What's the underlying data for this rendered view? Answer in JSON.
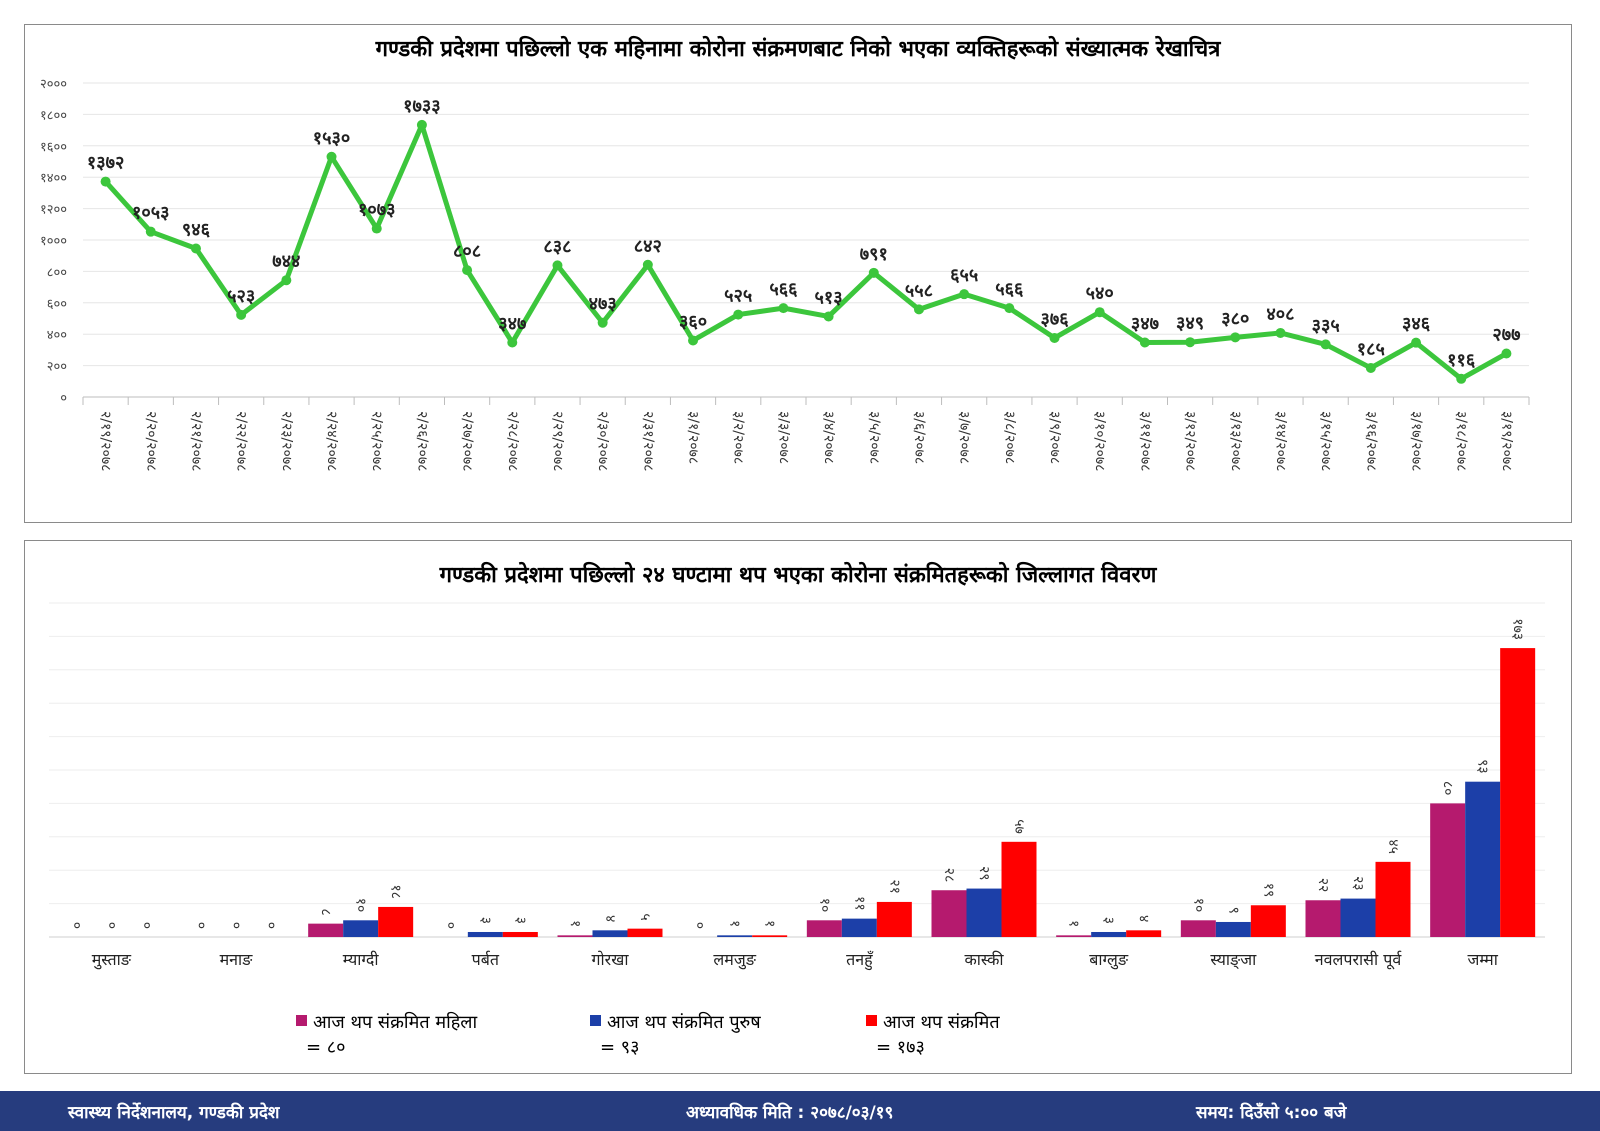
{
  "colors": {
    "line": "#3cc63c",
    "female": "#b51a6e",
    "male": "#1c3fa8",
    "total": "#ff0000",
    "footer_bg": "#263c7e"
  },
  "chart_data": [
    {
      "type": "line",
      "title": "गण्डकी प्रदेशमा पछिल्लो एक महिनामा कोरोना संक्रमणबाट निको भएका व्यक्तिहरूको संख्यात्मक रेखाचित्र",
      "ylim": [
        0,
        2000
      ],
      "yticks": [
        0,
        200,
        400,
        600,
        800,
        1000,
        1200,
        1400,
        1600,
        1800,
        2000
      ],
      "ytick_labels": [
        "०",
        "२००",
        "४००",
        "६००",
        "८००",
        "१०००",
        "१२००",
        "१४००",
        "१६००",
        "१८००",
        "२०००"
      ],
      "grid": true,
      "categories": [
        "२/१९/२०७८",
        "२/२०/२०७८",
        "२/२१/२०७८",
        "२/२२/२०७८",
        "२/२३/२०७८",
        "२/२४/२०७८",
        "२/२५/२०७८",
        "२/२६/२०७८",
        "२/२७/२०७८",
        "२/२८/२०७८",
        "२/२९/२०७८",
        "२/३०/२०७८",
        "२/३१/२०७८",
        "३/१/२०७८",
        "३/२/२०७८",
        "३/३/२०७८",
        "३/४/२०७८",
        "३/५/२०७८",
        "३/६/२०७८",
        "३/७/२०७८",
        "३/८/२०७८",
        "३/९/२०७८",
        "३/१०/२०७८",
        "३/११/२०७८",
        "३/१२/२०७८",
        "३/१३/२०७८",
        "३/१४/२०७८",
        "३/१५/२०७८",
        "३/१६/२०७८",
        "३/१७/२०७८",
        "३/१८/२०७८",
        "३/१९/२०७८"
      ],
      "values": [
        1372,
        1053,
        946,
        523,
        744,
        1530,
        1073,
        1733,
        808,
        347,
        838,
        473,
        842,
        360,
        525,
        566,
        513,
        791,
        558,
        655,
        566,
        376,
        540,
        347,
        349,
        380,
        408,
        335,
        185,
        346,
        116,
        277
      ],
      "data_labels": [
        "१३७२",
        "१०५३",
        "९४६",
        "५२३",
        "७४४",
        "१५३०",
        "१०७३",
        "१७३३",
        "८०८",
        "३४७",
        "८३८",
        "४७३",
        "८४२",
        "३६०",
        "५२५",
        "५६६",
        "५१३",
        "७९१",
        "५५८",
        "६५५",
        "५६६",
        "३७६",
        "५४०",
        "३४७",
        "३४९",
        "३८०",
        "४०८",
        "३३५",
        "१८५",
        "३४६",
        "११६",
        "२७७"
      ]
    },
    {
      "type": "bar",
      "title": "गण्डकी प्रदेशमा पछिल्लो २४ घण्टामा थप भएका कोरोना संक्रमितहरूको जिल्लागत विवरण",
      "ylim": [
        0,
        200
      ],
      "grid": true,
      "categories": [
        "मुस्ताङ",
        "मनाङ",
        "म्याग्दी",
        "पर्बत",
        "गोरखा",
        "लमजुङ",
        "तनहुँ",
        "कास्की",
        "बाग्लुङ",
        "स्याङ्जा",
        "नवलपरासी पूर्व",
        "जम्मा"
      ],
      "series": [
        {
          "name": "आज थप संक्रमित महिला",
          "values": [
            0,
            0,
            8,
            0,
            1,
            0,
            10,
            28,
            1,
            10,
            22,
            80
          ],
          "data_labels": [
            "०",
            "०",
            "८",
            "०",
            "१",
            "०",
            "१०",
            "२८",
            "१",
            "१०",
            "२२",
            "८०"
          ]
        },
        {
          "name": "आज थप संक्रमित पुरुष",
          "values": [
            0,
            0,
            10,
            3,
            4,
            1,
            11,
            29,
            3,
            9,
            23,
            93
          ],
          "data_labels": [
            "०",
            "०",
            "१०",
            "३",
            "४",
            "१",
            "११",
            "२९",
            "३",
            "९",
            "२३",
            "९३"
          ]
        },
        {
          "name": "आज थप संक्रमित",
          "values": [
            0,
            0,
            18,
            3,
            5,
            1,
            21,
            57,
            4,
            19,
            45,
            173
          ],
          "data_labels": [
            "०",
            "०",
            "१८",
            "३",
            "५",
            "१",
            "२१",
            "५७",
            "४",
            "१९",
            "४५",
            "१७३"
          ]
        }
      ],
      "legend_placement": "bottom",
      "legend_totals": [
        "= ८०",
        "= ९३",
        "= १७३"
      ]
    }
  ],
  "footer": {
    "left": "स्वास्थ्य निर्देशनालय, गण्डकी प्रदेश",
    "middle": "अध्यावधिक मिति : २०७८/०३/१९",
    "right": "समय: दिउँसो ५:०० बजे"
  }
}
